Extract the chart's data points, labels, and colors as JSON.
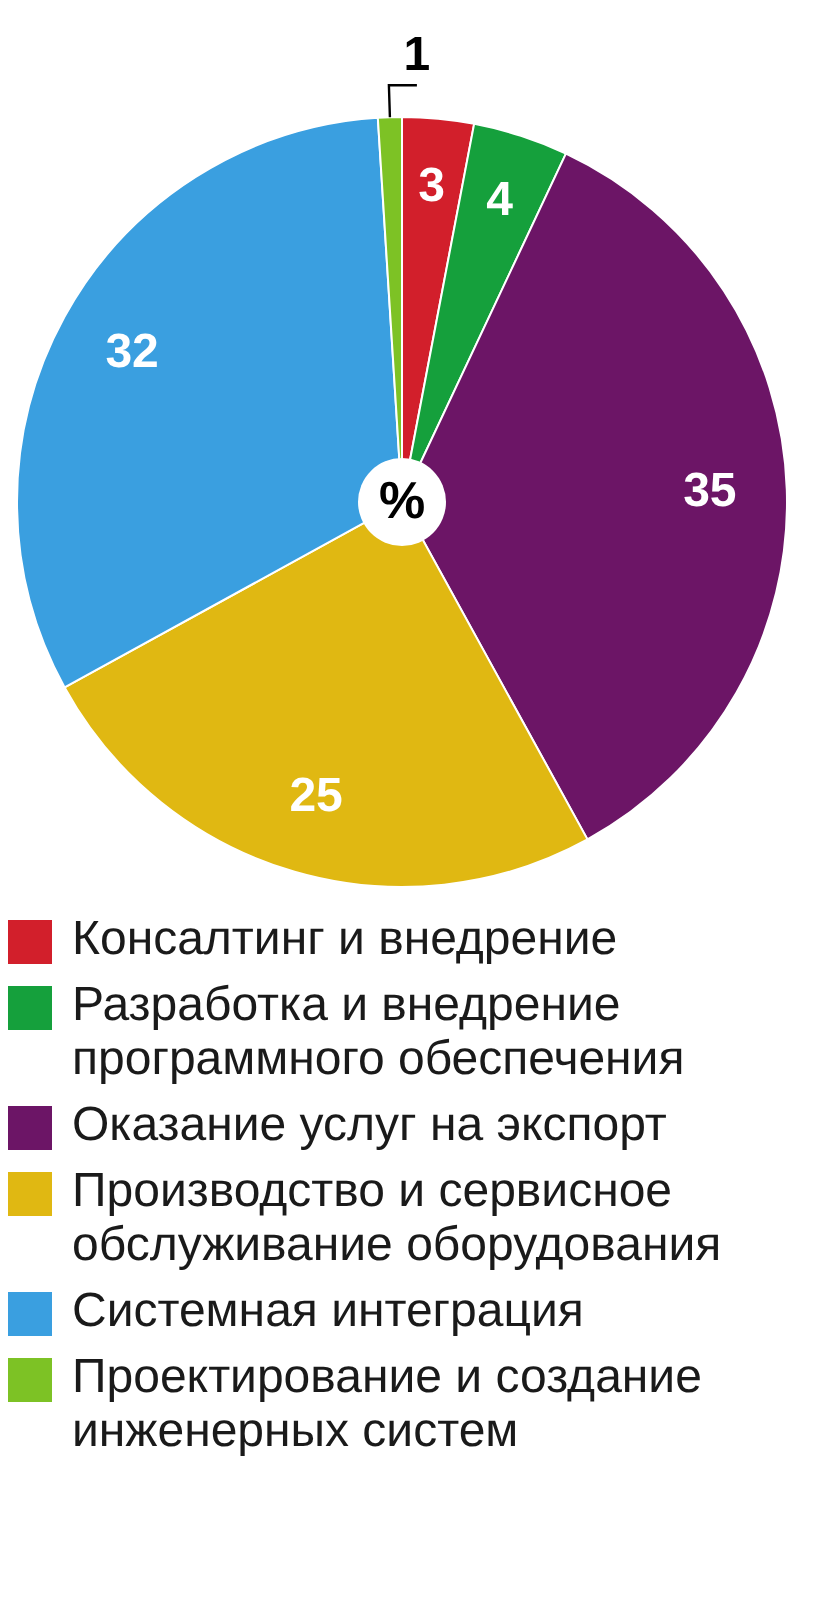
{
  "chart_data": {
    "type": "pie",
    "categories": [
      "Консалтинг и внедрение",
      "Разработка и внедрение программного обеспечения",
      "Оказание услуг на экспорт",
      "Производство и сервисное обслуживание оборудования",
      "Системная интеграция",
      "Проектирование и создание инженерных систем"
    ],
    "values": [
      3,
      4,
      35,
      25,
      32,
      1
    ],
    "colors": [
      "#d21f2b",
      "#15a03c",
      "#6c1566",
      "#e0b812",
      "#3a9fe0",
      "#7dc225"
    ],
    "data_labels": true,
    "legend": "bottom",
    "annotations": [
      "%"
    ]
  }
}
